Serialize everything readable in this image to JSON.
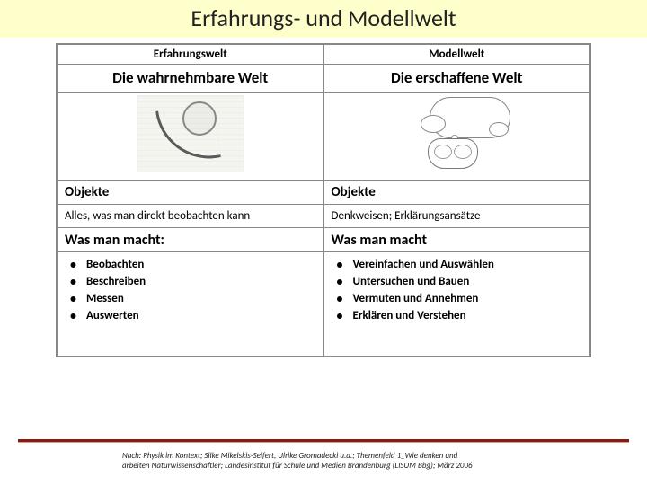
{
  "title": {
    "text": "Erfahrungs- und Modellwelt",
    "band_color": "#ffffcc",
    "font_size": 26
  },
  "table": {
    "border_color": "#888888",
    "left": {
      "header": "Erfahrungswelt",
      "subheader": "Die wahrnehmbare Welt",
      "section_label": "Objekte",
      "section_desc": "Alles, was man direkt beobachten kann",
      "actions_label": "Was man macht:",
      "actions": [
        "Beobachten",
        "Beschreiben",
        "Messen",
        "Auswerten"
      ]
    },
    "right": {
      "header": "Modellwelt",
      "subheader": "Die erschaffene Welt",
      "section_label": "Objekte",
      "section_desc": "Denkweisen; Erklärungsansätze",
      "actions_label": "Was man macht",
      "actions": [
        "Vereinfachen und Auswählen",
        "Untersuchen und Bauen",
        "Vermuten und Annehmen",
        "Erklären und Verstehen"
      ]
    }
  },
  "rule_color": "#8a1a12",
  "footer": {
    "line1": "Nach: Physik im Kontext; Silke Mikelskis-Seifert, Ulrike Gromadecki u.a.; Themenfeld 1_Wie denken und",
    "line2": "arbeiten Naturwissenschaftler; Landesinstitut für Schule und Medien Brandenburg (LISUM Bbg); März 2006"
  }
}
